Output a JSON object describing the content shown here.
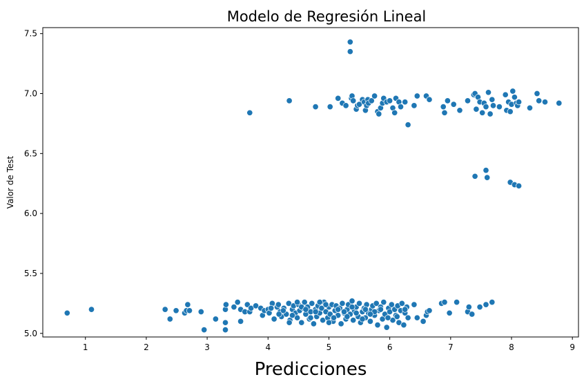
{
  "chart_data": {
    "type": "scatter",
    "title": "Modelo de Regresión Lineal",
    "xlabel": "Predicciones",
    "ylabel": "Valor de Test",
    "xlim": [
      0.3,
      9.1
    ],
    "ylim": [
      4.97,
      7.55
    ],
    "xticks": [
      "1",
      "2",
      "3",
      "4",
      "5",
      "6",
      "7",
      "8",
      "9"
    ],
    "yticks": [
      "5.0",
      "5.5",
      "6.0",
      "6.5",
      "7.0",
      "7.5"
    ],
    "grid": false,
    "marker_color": "#1f77b4",
    "marker_edge": "#ffffff",
    "points": [
      [
        0.7,
        5.17
      ],
      [
        1.1,
        5.2
      ],
      [
        2.31,
        5.2
      ],
      [
        2.39,
        5.12
      ],
      [
        2.49,
        5.19
      ],
      [
        2.63,
        5.17
      ],
      [
        2.66,
        5.19
      ],
      [
        2.68,
        5.24
      ],
      [
        2.71,
        5.19
      ],
      [
        2.9,
        5.18
      ],
      [
        2.95,
        5.03
      ],
      [
        3.14,
        5.12
      ],
      [
        3.3,
        5.03
      ],
      [
        3.3,
        5.09
      ],
      [
        3.3,
        5.2
      ],
      [
        3.31,
        5.24
      ],
      [
        3.44,
        5.22
      ],
      [
        3.5,
        5.26
      ],
      [
        3.55,
        5.2
      ],
      [
        3.55,
        5.1
      ],
      [
        3.62,
        5.18
      ],
      [
        3.66,
        5.24
      ],
      [
        3.7,
        5.18
      ],
      [
        3.72,
        5.21
      ],
      [
        3.8,
        5.23
      ],
      [
        3.88,
        5.21
      ],
      [
        3.91,
        5.15
      ],
      [
        3.94,
        5.19
      ],
      [
        4.0,
        5.2
      ],
      [
        4.02,
        5.17
      ],
      [
        4.07,
        5.25
      ],
      [
        4.1,
        5.12
      ],
      [
        4.15,
        5.22
      ],
      [
        4.17,
        5.24
      ],
      [
        4.2,
        5.18
      ],
      [
        4.22,
        5.14
      ],
      [
        4.26,
        5.21
      ],
      [
        4.3,
        5.16
      ],
      [
        4.34,
        5.25
      ],
      [
        4.36,
        5.11
      ],
      [
        4.4,
        5.2
      ],
      [
        4.42,
        5.23
      ],
      [
        4.45,
        5.17
      ],
      [
        4.48,
        5.13
      ],
      [
        4.5,
        5.24
      ],
      [
        4.52,
        5.19
      ],
      [
        4.55,
        5.09
      ],
      [
        4.58,
        5.21
      ],
      [
        4.6,
        5.26
      ],
      [
        4.62,
        5.16
      ],
      [
        4.65,
        5.22
      ],
      [
        4.68,
        5.12
      ],
      [
        4.7,
        5.18
      ],
      [
        4.72,
        5.25
      ],
      [
        4.75,
        5.08
      ],
      [
        4.78,
        5.2
      ],
      [
        4.8,
        5.14
      ],
      [
        4.82,
        5.23
      ],
      [
        4.85,
        5.17
      ],
      [
        4.88,
        5.21
      ],
      [
        4.9,
        5.11
      ],
      [
        4.92,
        5.26
      ],
      [
        4.95,
        5.18
      ],
      [
        4.98,
        5.13
      ],
      [
        5.0,
        5.22
      ],
      [
        5.02,
        5.16
      ],
      [
        5.05,
        5.24
      ],
      [
        5.07,
        5.1
      ],
      [
        5.1,
        5.19
      ],
      [
        5.12,
        5.23
      ],
      [
        5.15,
        5.15
      ],
      [
        5.18,
        5.21
      ],
      [
        5.2,
        5.08
      ],
      [
        5.22,
        5.25
      ],
      [
        5.25,
        5.17
      ],
      [
        5.28,
        5.12
      ],
      [
        5.3,
        5.2
      ],
      [
        5.32,
        5.24
      ],
      [
        5.35,
        5.16
      ],
      [
        5.38,
        5.27
      ],
      [
        5.4,
        5.11
      ],
      [
        5.42,
        5.19
      ],
      [
        5.45,
        5.22
      ],
      [
        5.48,
        5.14
      ],
      [
        5.5,
        5.25
      ],
      [
        5.52,
        5.09
      ],
      [
        5.55,
        5.18
      ],
      [
        5.58,
        5.21
      ],
      [
        5.6,
        5.13
      ],
      [
        5.62,
        5.24
      ],
      [
        5.65,
        5.17
      ],
      [
        5.68,
        5.1
      ],
      [
        5.7,
        5.2
      ],
      [
        5.72,
        5.23
      ],
      [
        5.75,
        5.15
      ],
      [
        5.78,
        5.25
      ],
      [
        5.8,
        5.07
      ],
      [
        5.82,
        5.19
      ],
      [
        5.85,
        5.22
      ],
      [
        5.88,
        5.12
      ],
      [
        5.9,
        5.26
      ],
      [
        5.92,
        5.16
      ],
      [
        5.95,
        5.05
      ],
      [
        5.98,
        5.21
      ],
      [
        6.0,
        5.18
      ],
      [
        6.03,
        5.24
      ],
      [
        6.05,
        5.11
      ],
      [
        6.08,
        5.2
      ],
      [
        6.1,
        5.15
      ],
      [
        6.13,
        5.23
      ],
      [
        6.15,
        5.09
      ],
      [
        6.18,
        5.19
      ],
      [
        6.2,
        5.25
      ],
      [
        6.23,
        5.07
      ],
      [
        6.25,
        5.17
      ],
      [
        6.28,
        5.22
      ],
      [
        6.3,
        5.13
      ],
      [
        6.4,
        5.24
      ],
      [
        6.45,
        5.13
      ],
      [
        6.55,
        5.1
      ],
      [
        6.6,
        5.15
      ],
      [
        6.62,
        5.18
      ],
      [
        6.65,
        5.19
      ],
      [
        6.85,
        5.25
      ],
      [
        6.9,
        5.26
      ],
      [
        6.98,
        5.17
      ],
      [
        7.1,
        5.26
      ],
      [
        7.28,
        5.18
      ],
      [
        7.3,
        5.22
      ],
      [
        7.35,
        5.16
      ],
      [
        7.48,
        5.22
      ],
      [
        7.58,
        5.24
      ],
      [
        7.68,
        5.26
      ],
      [
        4.25,
        5.19
      ],
      [
        4.4,
        5.15
      ],
      [
        4.55,
        5.22
      ],
      [
        4.7,
        5.13
      ],
      [
        4.85,
        5.26
      ],
      [
        5.0,
        5.09
      ],
      [
        5.15,
        5.2
      ],
      [
        5.3,
        5.14
      ],
      [
        5.45,
        5.17
      ],
      [
        5.6,
        5.2
      ],
      [
        5.75,
        5.18
      ],
      [
        4.05,
        5.21
      ],
      [
        4.35,
        5.09
      ],
      [
        4.62,
        5.2
      ],
      [
        4.95,
        5.24
      ],
      [
        5.25,
        5.18
      ],
      [
        5.55,
        5.12
      ],
      [
        5.85,
        5.2
      ],
      [
        6.12,
        5.14
      ],
      [
        4.18,
        5.16
      ],
      [
        4.48,
        5.26
      ],
      [
        4.78,
        5.18
      ],
      [
        5.08,
        5.13
      ],
      [
        5.38,
        5.22
      ],
      [
        5.68,
        5.16
      ],
      [
        5.97,
        5.13
      ],
      [
        6.25,
        5.2
      ],
      [
        3.7,
        6.84
      ],
      [
        4.35,
        6.94
      ],
      [
        4.78,
        6.89
      ],
      [
        5.02,
        6.89
      ],
      [
        5.15,
        6.96
      ],
      [
        5.22,
        6.92
      ],
      [
        5.28,
        6.9
      ],
      [
        5.37,
        6.96
      ],
      [
        5.38,
        6.98
      ],
      [
        5.4,
        6.94
      ],
      [
        5.45,
        6.87
      ],
      [
        5.47,
        6.9
      ],
      [
        5.5,
        6.91
      ],
      [
        5.55,
        6.95
      ],
      [
        5.58,
        6.93
      ],
      [
        5.6,
        6.86
      ],
      [
        5.62,
        6.9
      ],
      [
        5.64,
        6.95
      ],
      [
        5.65,
        6.92
      ],
      [
        5.7,
        6.94
      ],
      [
        5.75,
        6.98
      ],
      [
        5.8,
        6.85
      ],
      [
        5.82,
        6.83
      ],
      [
        5.85,
        6.88
      ],
      [
        5.88,
        6.92
      ],
      [
        5.9,
        6.96
      ],
      [
        5.95,
        6.93
      ],
      [
        6.0,
        6.94
      ],
      [
        6.05,
        6.88
      ],
      [
        6.08,
        6.84
      ],
      [
        6.1,
        6.96
      ],
      [
        6.15,
        6.93
      ],
      [
        6.18,
        6.89
      ],
      [
        6.25,
        6.93
      ],
      [
        6.3,
        6.74
      ],
      [
        6.4,
        6.9
      ],
      [
        6.45,
        6.98
      ],
      [
        6.6,
        6.98
      ],
      [
        6.65,
        6.95
      ],
      [
        6.88,
        6.89
      ],
      [
        6.9,
        6.84
      ],
      [
        6.95,
        6.94
      ],
      [
        7.05,
        6.91
      ],
      [
        7.15,
        6.86
      ],
      [
        7.28,
        6.94
      ],
      [
        7.38,
        6.99
      ],
      [
        7.4,
        7.0
      ],
      [
        7.42,
        6.87
      ],
      [
        7.45,
        6.97
      ],
      [
        7.48,
        6.93
      ],
      [
        7.52,
        6.84
      ],
      [
        7.55,
        6.92
      ],
      [
        7.58,
        6.89
      ],
      [
        7.62,
        7.01
      ],
      [
        7.65,
        6.83
      ],
      [
        7.68,
        6.95
      ],
      [
        7.7,
        6.9
      ],
      [
        7.8,
        6.89
      ],
      [
        7.9,
        6.99
      ],
      [
        7.92,
        6.86
      ],
      [
        7.95,
        6.93
      ],
      [
        7.98,
        6.85
      ],
      [
        8.0,
        6.91
      ],
      [
        8.02,
        7.02
      ],
      [
        8.05,
        6.97
      ],
      [
        8.08,
        6.92
      ],
      [
        8.1,
        6.9
      ],
      [
        8.12,
        6.93
      ],
      [
        8.3,
        6.88
      ],
      [
        8.42,
        7.0
      ],
      [
        8.45,
        6.94
      ],
      [
        8.55,
        6.93
      ],
      [
        8.78,
        6.92
      ],
      [
        5.35,
        7.43
      ],
      [
        5.35,
        7.35
      ],
      [
        7.4,
        6.31
      ],
      [
        7.58,
        6.36
      ],
      [
        7.6,
        6.3
      ],
      [
        7.98,
        6.26
      ],
      [
        8.05,
        6.24
      ],
      [
        8.12,
        6.23
      ]
    ]
  }
}
